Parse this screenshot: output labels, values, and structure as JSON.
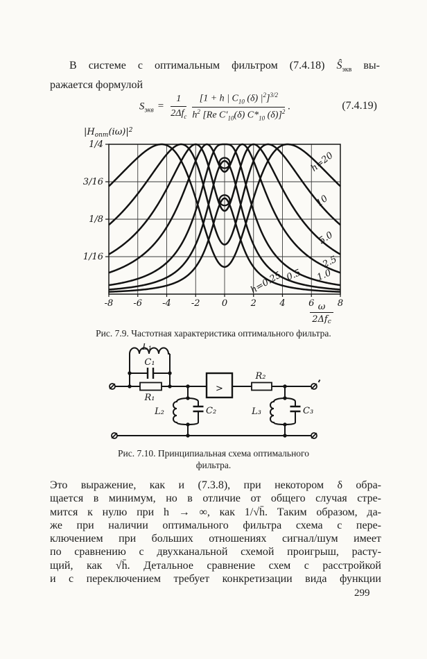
{
  "page": {
    "number": "299",
    "background": "#fbfaf6",
    "ink": "#1c1c1c"
  },
  "intro": {
    "line1_pre": "В системе с оптимальным фильтром (7.4.18) ",
    "line1_s": "Ŝ",
    "line1_sub": "экв",
    "line1_post": " вы-",
    "line2": "ражается формулой"
  },
  "equation": {
    "lhs": "S",
    "lhs_sub": "экв",
    "eq": "=",
    "frac1_num": "1",
    "frac1_den": "2Δf",
    "frac1_den_sub": "с",
    "frac2_num_a": "[1 + h | C",
    "frac2_num_a_sub": "10",
    "frac2_num_b": " (δ) |",
    "frac2_num_b_sup": "2",
    "frac2_num_c": "]",
    "frac2_num_c_sup": "3/2",
    "frac2_den_a": "h",
    "frac2_den_a_sup": "2",
    "frac2_den_b": " [Re C′",
    "frac2_den_b_sub": "10",
    "frac2_den_c": "(δ) C*",
    "frac2_den_c_sub": "10",
    "frac2_den_d": " (δ)]",
    "frac2_den_d_sup": "2",
    "period": ".",
    "number": "(7.4.19)"
  },
  "chart_data": {
    "type": "line",
    "title": "Частотная характеристика оптимального фильтра",
    "ylabel_parts": {
      "pre": "|H",
      "sub": "опт",
      "post": "(iω)|",
      "sup": "2"
    },
    "xlabel_parts": {
      "num": "ω",
      "den": "2Δf",
      "den_sub": "с"
    },
    "xlim": [
      -8,
      8
    ],
    "ylim": [
      0,
      0.25
    ],
    "grid": true,
    "x_ticks": [
      {
        "label": "-8",
        "value": -8
      },
      {
        "label": "-6",
        "value": -6
      },
      {
        "label": "-4",
        "value": -4
      },
      {
        "label": "-2",
        "value": -2
      },
      {
        "label": "0",
        "value": 0
      },
      {
        "label": "2",
        "value": 2
      },
      {
        "label": "4",
        "value": 4
      },
      {
        "label": "6",
        "value": 6
      },
      {
        "label": "8",
        "value": 8
      }
    ],
    "y_ticks": [
      {
        "label": "1/4",
        "value": 0.25
      },
      {
        "label": "3/16",
        "value": 0.1875
      },
      {
        "label": "1/8",
        "value": 0.125
      },
      {
        "label": "1/16",
        "value": 0.0625
      }
    ],
    "model": "y = u/(1+u)^2,  u = h/(1+x^2);  curves symmetric in x",
    "x_samples": [
      0,
      1,
      2,
      3,
      4,
      5,
      6,
      7,
      8
    ],
    "series": [
      {
        "label": "h=20",
        "h": 20,
        "peak_x": "±4.36",
        "peak_y": 0.25,
        "values": [
          0.0454,
          0.0826,
          0.16,
          0.2222,
          0.2484,
          0.2457,
          0.2278,
          0.2041,
          0.1799
        ],
        "label_x": 6.85,
        "label_rot": -38,
        "label_dy": -8
      },
      {
        "label": "10",
        "h": 10,
        "peak_x": "±3.0",
        "peak_y": 0.25,
        "values": [
          0.0826,
          0.1389,
          0.2222,
          0.25,
          0.2332,
          0.2006,
          0.1675,
          0.1389,
          0.1155
        ],
        "label_x": 6.85,
        "label_rot": -38,
        "label_dy": -8
      },
      {
        "label": "5.0",
        "h": 5,
        "peak_x": "±2.0",
        "peak_y": 0.25,
        "values": [
          0.1389,
          0.2041,
          0.25,
          0.2222,
          0.1756,
          0.1352,
          0.1048,
          0.0826,
          0.0663
        ],
        "label_x": 7.1,
        "label_rot": -33,
        "label_dy": -8
      },
      {
        "label": "2.5",
        "h": 2.5,
        "peak_x": "±1.22",
        "peak_y": 0.25,
        "values": [
          0.2041,
          0.2469,
          0.2222,
          0.16,
          0.1117,
          0.08,
          0.0593,
          0.0454,
          0.0357
        ],
        "label_x": 7.35,
        "label_rot": -27,
        "label_dy": -7
      },
      {
        "label": "1.0",
        "h": 1,
        "peak_x": "0",
        "peak_y": 0.25,
        "values": [
          0.25,
          0.2222,
          0.1389,
          0.0826,
          0.0525,
          0.0357,
          0.0256,
          0.0192,
          0.0149
        ],
        "label_x": 6.95,
        "label_rot": -24,
        "label_dy": -7
      },
      {
        "label": "0.5",
        "h": 0.5,
        "peak_x": "0",
        "peak_y": 0.2222,
        "values": [
          0.2222,
          0.16,
          0.0826,
          0.0454,
          0.0278,
          0.0185,
          0.0132,
          0.0098,
          0.0076
        ],
        "label_x": 4.85,
        "label_rot": -24,
        "label_dy": -7
      },
      {
        "label": "h=0.25",
        "h": 0.25,
        "peak_x": "0",
        "peak_y": 0.16,
        "values": [
          0.16,
          0.0988,
          0.0454,
          0.0238,
          0.0143,
          0.0094,
          0.0067,
          0.005,
          0.0038
        ],
        "label_x": 2.95,
        "label_rot": -30,
        "label_dy": 8
      }
    ],
    "peak_markers": [
      {
        "x": 0,
        "y": 0.2222
      },
      {
        "x": 0,
        "y": 0.16
      }
    ],
    "legend_position": "labels on curves, right side"
  },
  "figure9_caption": "Рис. 7.9. Частотная характеристика оптимального фильтра.",
  "circuit": {
    "labels": {
      "L1": "L₁",
      "C1": "C₁",
      "R1": "R₁",
      "amp": ">",
      "R2": "R₂",
      "L2": "L₂",
      "C2": "C₂",
      "L3": "L₃",
      "C3": "C₃"
    }
  },
  "figure10_caption_line1": "Рис. 7.10. Принципиальная схема оптимального",
  "figure10_caption_line2": "фильтра.",
  "body": {
    "lines": [
      "Это выражение, как и (7.3.8), при некотором δ обра-",
      "щается в минимум, но в отличие от общего случая стре-",
      "мится к нулю при h → ∞, как 1/√h̄. Таким образом, да-",
      "же при наличии оптимального фильтра схема с пере-",
      "ключением при больших отношениях сигнал/шум имеет",
      "по сравнению с двухканальной схемой проигрыш, расту-",
      "щий, как √h̄. Детальное сравнение схем с расстройкой",
      "и с переключением требует конкретизации вида функции"
    ]
  }
}
